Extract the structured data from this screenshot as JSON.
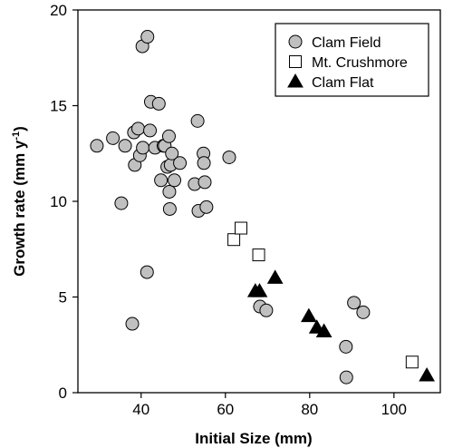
{
  "chart_data": {
    "type": "scatter",
    "xlabel": "Initial Size (mm)",
    "ylabel": "Growth rate (mm y",
    "ylabel_superscript": "-1",
    "ylabel_suffix": ")",
    "xlim": [
      25,
      111
    ],
    "ylim": [
      0,
      20
    ],
    "xticks": [
      40,
      60,
      80,
      100
    ],
    "yticks": [
      0,
      5,
      10,
      15,
      20
    ],
    "grid": false,
    "legend_position": "top-right",
    "series": [
      {
        "name": "Clam Field",
        "marker": "circle",
        "fill": "#c0c0c0",
        "points": [
          [
            29.5,
            12.9
          ],
          [
            33.3,
            13.3
          ],
          [
            35.3,
            9.9
          ],
          [
            36.2,
            12.9
          ],
          [
            37.9,
            3.6
          ],
          [
            38.3,
            13.6
          ],
          [
            38.5,
            11.9
          ],
          [
            39.3,
            13.8
          ],
          [
            39.7,
            12.4
          ],
          [
            40.3,
            18.1
          ],
          [
            40.4,
            12.8
          ],
          [
            41.4,
            6.3
          ],
          [
            41.5,
            18.6
          ],
          [
            42.1,
            13.7
          ],
          [
            42.3,
            15.2
          ],
          [
            43.3,
            12.8
          ],
          [
            44.2,
            15.1
          ],
          [
            44.7,
            11.1
          ],
          [
            45.3,
            12.9
          ],
          [
            45.6,
            12.9
          ],
          [
            46.2,
            11.8
          ],
          [
            46.6,
            13.4
          ],
          [
            46.7,
            10.5
          ],
          [
            46.8,
            9.6
          ],
          [
            47.0,
            11.9
          ],
          [
            47.3,
            12.5
          ],
          [
            47.9,
            11.1
          ],
          [
            49.2,
            12.0
          ],
          [
            52.7,
            10.9
          ],
          [
            53.4,
            14.2
          ],
          [
            53.6,
            9.5
          ],
          [
            54.8,
            12.5
          ],
          [
            54.9,
            12.0
          ],
          [
            55.1,
            11.0
          ],
          [
            55.5,
            9.7
          ],
          [
            60.9,
            12.3
          ],
          [
            68.2,
            4.5
          ],
          [
            69.7,
            4.3
          ],
          [
            88.6,
            2.4
          ],
          [
            88.7,
            0.8
          ],
          [
            90.5,
            4.7
          ],
          [
            92.7,
            4.2
          ]
        ]
      },
      {
        "name": "Mt. Crushmore",
        "marker": "square",
        "fill": "#ffffff",
        "points": [
          [
            62.0,
            8.0
          ],
          [
            63.7,
            8.6
          ],
          [
            67.9,
            7.2
          ],
          [
            104.3,
            1.6
          ]
        ]
      },
      {
        "name": "Clam Flat",
        "marker": "triangle",
        "fill": "#000000",
        "points": [
          [
            67.1,
            5.3
          ],
          [
            68.1,
            5.3
          ],
          [
            71.8,
            6.0
          ],
          [
            79.8,
            4.0
          ],
          [
            81.7,
            3.4
          ],
          [
            83.4,
            3.2
          ],
          [
            107.8,
            0.9
          ]
        ]
      }
    ]
  }
}
